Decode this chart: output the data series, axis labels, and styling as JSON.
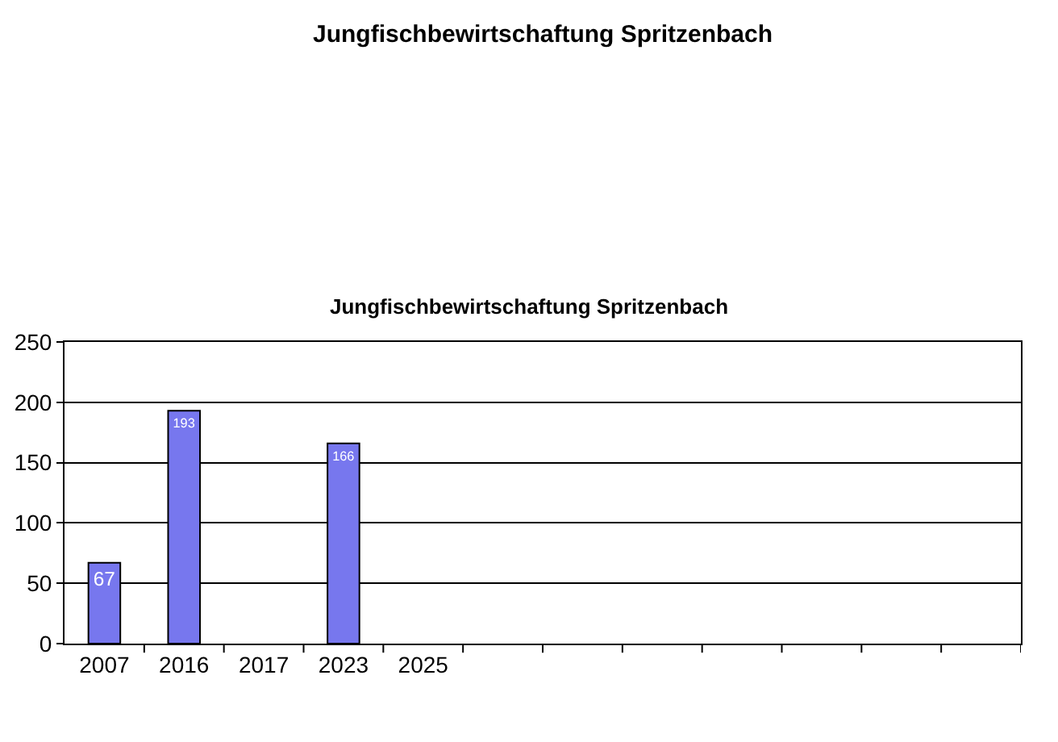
{
  "chart_data": {
    "type": "bar",
    "title": "Jungfischbewirtschaftung Spritzenbach",
    "annotations": [
      "Jungfischbewirtschaftung Spritzenbach"
    ],
    "categories": [
      "2007",
      "2016",
      "2017",
      "2023",
      "2025",
      null,
      null,
      null,
      null,
      null,
      null,
      null
    ],
    "values": [
      67,
      193,
      null,
      166,
      null,
      null,
      null,
      null,
      null,
      null,
      null,
      null
    ],
    "color": "#7777ee",
    "data_labels": true,
    "ylim": [
      0,
      250
    ],
    "yticks": [
      0,
      50,
      100,
      150,
      200,
      250
    ],
    "grid": "y"
  }
}
